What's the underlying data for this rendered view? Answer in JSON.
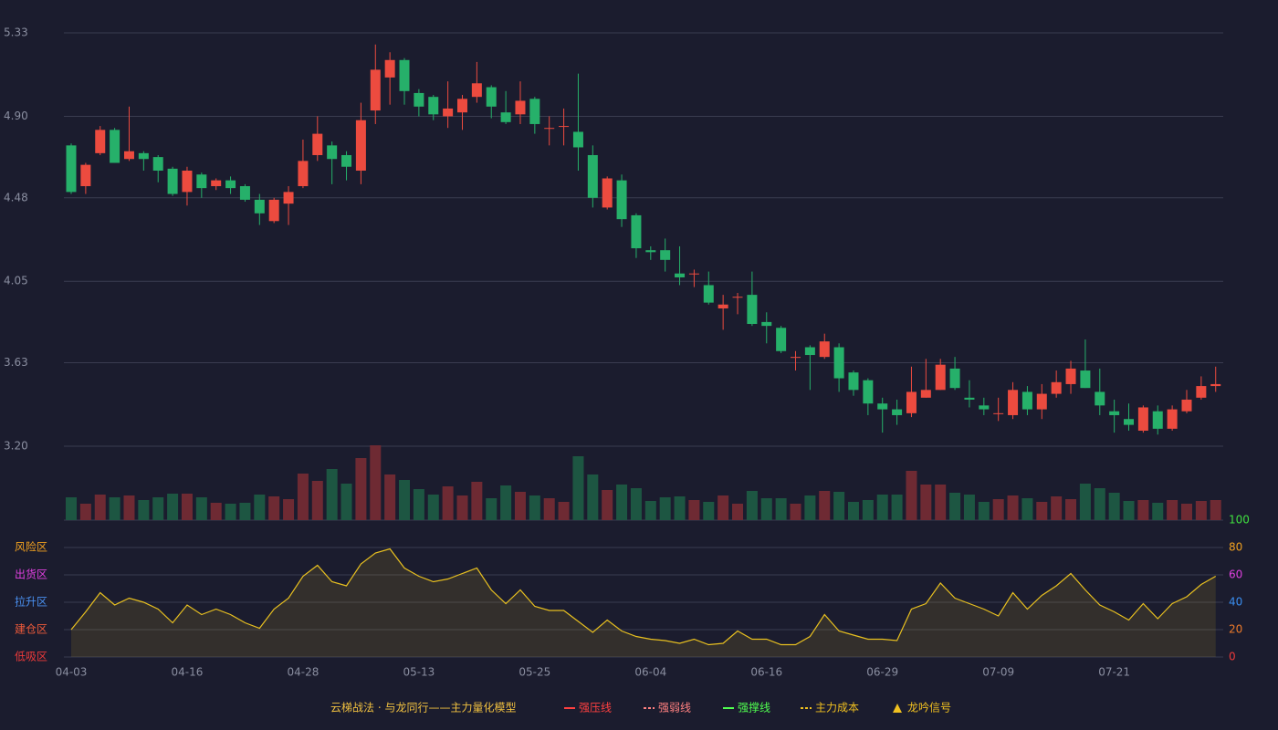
{
  "chart_data": {
    "type": "candlestick",
    "categories": [
      "04-03",
      null,
      null,
      null,
      null,
      null,
      null,
      null,
      "04-16",
      null,
      null,
      null,
      null,
      null,
      null,
      null,
      "04-28",
      null,
      null,
      null,
      null,
      null,
      null,
      null,
      "05-13",
      null,
      null,
      null,
      null,
      null,
      null,
      null,
      "05-25",
      null,
      null,
      null,
      null,
      null,
      null,
      null,
      "06-04",
      null,
      null,
      null,
      null,
      null,
      null,
      null,
      "06-16",
      null,
      null,
      null,
      null,
      null,
      null,
      null,
      "06-29",
      null,
      null,
      null,
      null,
      null,
      null,
      null,
      "07-09",
      null,
      null,
      null,
      null,
      null,
      null,
      null,
      "07-21",
      null,
      null,
      null,
      null,
      null,
      null,
      null
    ],
    "open": [
      4.75,
      4.54,
      4.71,
      4.83,
      4.68,
      4.71,
      4.69,
      4.63,
      4.51,
      4.6,
      4.54,
      4.57,
      4.54,
      4.47,
      4.36,
      4.45,
      4.54,
      4.7,
      4.75,
      4.7,
      4.62,
      4.93,
      5.1,
      5.19,
      5.02,
      5.0,
      4.9,
      4.92,
      5.0,
      5.05,
      4.92,
      4.91,
      4.99,
      4.84,
      4.85,
      4.82,
      4.7,
      4.43,
      4.57,
      4.39,
      4.21,
      4.21,
      4.09,
      4.09,
      4.03,
      3.91,
      3.97,
      3.98,
      3.84,
      3.81,
      3.66,
      3.71,
      3.66,
      3.71,
      3.58,
      3.54,
      3.42,
      3.39,
      3.37,
      3.45,
      3.49,
      3.6,
      3.45,
      3.41,
      3.37,
      3.36,
      3.48,
      3.39,
      3.47,
      3.52,
      3.59,
      3.48,
      3.38,
      3.34,
      3.28,
      3.38,
      3.29,
      3.38,
      3.45,
      3.51
    ],
    "high": [
      4.76,
      4.66,
      4.85,
      4.84,
      4.95,
      4.72,
      4.7,
      4.64,
      4.64,
      4.61,
      4.58,
      4.59,
      4.55,
      4.5,
      4.48,
      4.54,
      4.78,
      4.9,
      4.77,
      4.72,
      4.97,
      5.27,
      5.23,
      5.2,
      5.04,
      5.01,
      5.08,
      5.01,
      5.18,
      5.06,
      5.03,
      5.08,
      5.0,
      4.9,
      4.94,
      5.12,
      4.75,
      4.59,
      4.6,
      4.4,
      4.23,
      4.27,
      4.23,
      4.11,
      4.1,
      3.98,
      3.99,
      4.1,
      3.89,
      3.82,
      3.69,
      3.72,
      3.78,
      3.73,
      3.59,
      3.55,
      3.45,
      3.44,
      3.61,
      3.65,
      3.65,
      3.66,
      3.54,
      3.45,
      3.45,
      3.53,
      3.51,
      3.52,
      3.59,
      3.64,
      3.75,
      3.6,
      3.44,
      3.42,
      3.41,
      3.41,
      3.41,
      3.49,
      3.56,
      3.61
    ],
    "low": [
      4.5,
      4.5,
      4.7,
      4.66,
      4.67,
      4.62,
      4.56,
      4.49,
      4.44,
      4.48,
      4.52,
      4.5,
      4.46,
      4.34,
      4.35,
      4.34,
      4.53,
      4.67,
      4.55,
      4.57,
      4.55,
      4.86,
      4.96,
      4.96,
      4.9,
      4.88,
      4.84,
      4.83,
      4.97,
      4.89,
      4.86,
      4.86,
      4.81,
      4.75,
      4.75,
      4.62,
      4.43,
      4.42,
      4.33,
      4.17,
      4.16,
      4.1,
      4.03,
      4.02,
      3.93,
      3.8,
      3.88,
      3.82,
      3.73,
      3.68,
      3.59,
      3.49,
      3.65,
      3.48,
      3.46,
      3.36,
      3.27,
      3.31,
      3.35,
      3.45,
      3.49,
      3.49,
      3.4,
      3.36,
      3.33,
      3.34,
      3.36,
      3.34,
      3.45,
      3.47,
      3.5,
      3.36,
      3.27,
      3.28,
      3.27,
      3.26,
      3.28,
      3.37,
      3.44,
      3.48
    ],
    "close": [
      4.51,
      4.65,
      4.83,
      4.66,
      4.72,
      4.68,
      4.62,
      4.5,
      4.62,
      4.53,
      4.57,
      4.53,
      4.47,
      4.4,
      4.47,
      4.51,
      4.67,
      4.81,
      4.68,
      4.64,
      4.88,
      5.14,
      5.19,
      5.03,
      4.95,
      4.91,
      4.94,
      4.99,
      5.07,
      4.95,
      4.87,
      4.98,
      4.86,
      4.84,
      4.85,
      4.74,
      4.48,
      4.58,
      4.37,
      4.22,
      4.2,
      4.16,
      4.07,
      4.09,
      3.94,
      3.93,
      3.97,
      3.83,
      3.82,
      3.69,
      3.66,
      3.67,
      3.74,
      3.55,
      3.49,
      3.42,
      3.39,
      3.36,
      3.48,
      3.49,
      3.62,
      3.5,
      3.44,
      3.39,
      3.37,
      3.49,
      3.39,
      3.47,
      3.53,
      3.6,
      3.5,
      3.41,
      3.36,
      3.31,
      3.4,
      3.29,
      3.39,
      3.44,
      3.51,
      3.52
    ],
    "up_color": "#ec4b3f",
    "down_color": "#26b06a",
    "ylim": [
      3.2,
      5.33
    ],
    "yticks": [
      {
        "value": 3.2,
        "label": "3.20"
      },
      3.63,
      4.05,
      4.48,
      {
        "value": 4.9,
        "label": "4.90"
      },
      5.33
    ],
    "grid": true,
    "volume": {
      "values": [
        25,
        18,
        28,
        25,
        27,
        22,
        25,
        29,
        29,
        25,
        19,
        18,
        19,
        28,
        26,
        23,
        51,
        43,
        56,
        40,
        68,
        82,
        50,
        44,
        34,
        28,
        37,
        27,
        42,
        24,
        38,
        31,
        27,
        24,
        20,
        70,
        50,
        33,
        39,
        35,
        21,
        25,
        26,
        22,
        20,
        27,
        18,
        32,
        24,
        24,
        18,
        27,
        32,
        31,
        20,
        22,
        28,
        28,
        54,
        39,
        39,
        30,
        28,
        20,
        23,
        27,
        24,
        20,
        26,
        23,
        40,
        35,
        30,
        21,
        22,
        19,
        22,
        18,
        21,
        22
      ],
      "ylim": [
        0,
        82
      ],
      "up_color": "#6e2a33",
      "down_color": "#1d5642"
    },
    "indicator": {
      "values": [
        20,
        33,
        47,
        38,
        43,
        40,
        35,
        25,
        38,
        31,
        35,
        31,
        25,
        21,
        35,
        43,
        59,
        67,
        55,
        52,
        68,
        76,
        79,
        65,
        59,
        55,
        57,
        61,
        65,
        49,
        39,
        49,
        37,
        34,
        34,
        26,
        18,
        27,
        19,
        15,
        13,
        12,
        10,
        13,
        9,
        10,
        19,
        13,
        13,
        9,
        9,
        15,
        31,
        19,
        16,
        13,
        13,
        12,
        35,
        39,
        54,
        43,
        39,
        35,
        30,
        47,
        35,
        45,
        52,
        61,
        49,
        38,
        33,
        27,
        39,
        28,
        39,
        44,
        53,
        59
      ],
      "color": "#e8c020",
      "ylim": [
        0,
        100
      ],
      "yticks": [
        0,
        20,
        40,
        60,
        80,
        100
      ],
      "ytick_colors": [
        "#ee3a3a",
        "#ee7a2a",
        "#3a8ef0",
        "#e040e0",
        "#f0a020",
        "#40e040"
      ],
      "zones": [
        {
          "label": "低吸区",
          "color": "#ee3a3a"
        },
        {
          "label": "建仓区",
          "color": "#ee5a3a"
        },
        {
          "label": "拉升区",
          "color": "#4a90f0"
        },
        {
          "label": "出货区",
          "color": "#e040e0"
        },
        {
          "label": "风险区",
          "color": "#f0a020"
        }
      ]
    },
    "legend": {
      "title": "云梯战法 · 与龙同行——主力量化模型",
      "title_color": "#f0c040",
      "items": [
        {
          "name": "强压线",
          "color": "#ff4040",
          "style": "solid"
        },
        {
          "name": "强弱线",
          "color": "#ff8080",
          "style": "dashed"
        },
        {
          "name": "强撑线",
          "color": "#50ff50",
          "style": "solid"
        },
        {
          "name": "主力成本",
          "color": "#f0c020",
          "style": "dashed"
        },
        {
          "name": "龙吟信号",
          "color": "#f0c020",
          "style": "triangle"
        }
      ]
    }
  }
}
